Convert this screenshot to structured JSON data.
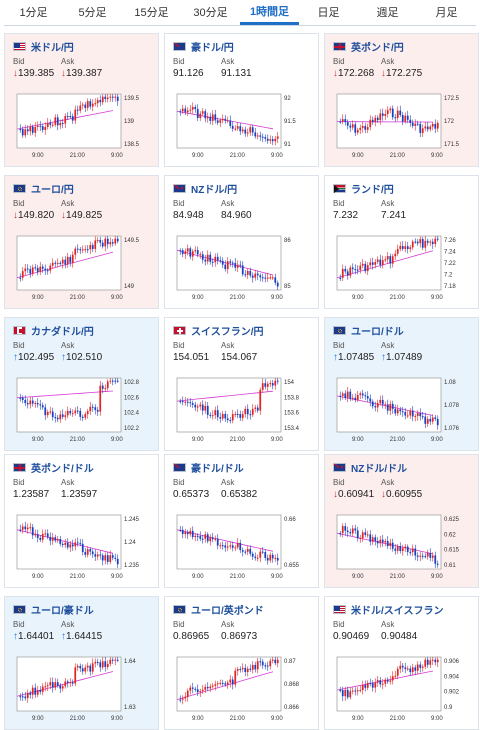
{
  "tabs": [
    {
      "label": "1分足",
      "active": false
    },
    {
      "label": "5分足",
      "active": false
    },
    {
      "label": "15分足",
      "active": false
    },
    {
      "label": "30分足",
      "active": false
    },
    {
      "label": "1時間足",
      "active": true
    },
    {
      "label": "日足",
      "active": false
    },
    {
      "label": "週足",
      "active": false
    },
    {
      "label": "月足",
      "active": false
    }
  ],
  "colors": {
    "up_candle": "#1a3fbf",
    "down_candle": "#e02424",
    "avg_line": "#d63bd6",
    "price_line": "#2f6fd6"
  },
  "cards": [
    {
      "name": "米ドル/円",
      "flag": "us",
      "trend": "down",
      "bid_label": "Bid",
      "ask_label": "Ask",
      "bid": "139.385",
      "ask": "139.387",
      "dir": "down",
      "yticks": [
        "139.5",
        "139",
        "138.5"
      ],
      "xticks": [
        "9:00",
        "21:00",
        "9:00"
      ],
      "chart_seed": 3,
      "chart_shape": "rise"
    },
    {
      "name": "豪ドル/円",
      "flag": "au",
      "trend": "flat",
      "bid_label": "Bid",
      "ask_label": "Ask",
      "bid": "91.126",
      "ask": "91.131",
      "dir": "none",
      "yticks": [
        "92",
        "91.5",
        "91"
      ],
      "xticks": [
        "9:00",
        "21:00",
        "9:00"
      ],
      "chart_seed": 5,
      "chart_shape": "fall"
    },
    {
      "name": "英ポンド/円",
      "flag": "uk",
      "trend": "down",
      "bid_label": "Bid",
      "ask_label": "Ask",
      "bid": "172.268",
      "ask": "172.275",
      "dir": "down",
      "yticks": [
        "172.5",
        "172",
        "171.5"
      ],
      "xticks": [
        "9:00",
        "21:00",
        "9:00"
      ],
      "chart_seed": 7,
      "chart_shape": "wave"
    },
    {
      "name": "ユーロ/円",
      "flag": "eu",
      "trend": "down",
      "bid_label": "Bid",
      "ask_label": "Ask",
      "bid": "149.820",
      "ask": "149.825",
      "dir": "down",
      "yticks": [
        "149.5",
        "149"
      ],
      "xticks": [
        "9:00",
        "21:00",
        "9:00"
      ],
      "chart_seed": 11,
      "chart_shape": "rise"
    },
    {
      "name": "NZドル/円",
      "flag": "nz",
      "trend": "flat",
      "bid_label": "Bid",
      "ask_label": "Ask",
      "bid": "84.948",
      "ask": "84.960",
      "dir": "none",
      "yticks": [
        "86",
        "85"
      ],
      "xticks": [
        "9:00",
        "21:00",
        "9:00"
      ],
      "chart_seed": 13,
      "chart_shape": "fall"
    },
    {
      "name": "ランド/円",
      "flag": "za",
      "trend": "flat",
      "bid_label": "Bid",
      "ask_label": "Ask",
      "bid": "7.232",
      "ask": "7.241",
      "dir": "none",
      "yticks": [
        "7.26",
        "7.24",
        "7.22",
        "7.2",
        "7.18"
      ],
      "xticks": [
        "9:00",
        "21:00",
        "9:00"
      ],
      "chart_seed": 17,
      "chart_shape": "rise"
    },
    {
      "name": "カナダドル/円",
      "flag": "ca",
      "trend": "up",
      "bid_label": "Bid",
      "ask_label": "Ask",
      "bid": "102.495",
      "ask": "102.510",
      "dir": "up",
      "yticks": [
        "102.8",
        "102.6",
        "102.4",
        "102.2"
      ],
      "xticks": [
        "9:00",
        "21:00",
        "9:00"
      ],
      "chart_seed": 19,
      "chart_shape": "dip"
    },
    {
      "name": "スイスフラン/円",
      "flag": "ch",
      "trend": "flat",
      "bid_label": "Bid",
      "ask_label": "Ask",
      "bid": "154.051",
      "ask": "154.067",
      "dir": "none",
      "yticks": [
        "154",
        "153.8",
        "153.6",
        "153.4"
      ],
      "xticks": [
        "9:00",
        "21:00",
        "9:00"
      ],
      "chart_seed": 23,
      "chart_shape": "dip"
    },
    {
      "name": "ユーロ/ドル",
      "flag": "eu",
      "trend": "up",
      "bid_label": "Bid",
      "ask_label": "Ask",
      "bid": "1.07485",
      "ask": "1.07489",
      "dir": "up",
      "yticks": [
        "1.08",
        "1.078",
        "1.076"
      ],
      "xticks": [
        "9:00",
        "21:00",
        "9:00"
      ],
      "chart_seed": 29,
      "chart_shape": "fall"
    },
    {
      "name": "英ポンド/ドル",
      "flag": "uk",
      "trend": "flat",
      "bid_label": "Bid",
      "ask_label": "Ask",
      "bid": "1.23587",
      "ask": "1.23597",
      "dir": "none",
      "yticks": [
        "1.245",
        "1.24",
        "1.235"
      ],
      "xticks": [
        "9:00",
        "21:00",
        "9:00"
      ],
      "chart_seed": 31,
      "chart_shape": "fall"
    },
    {
      "name": "豪ドル/ドル",
      "flag": "au",
      "trend": "flat",
      "bid_label": "Bid",
      "ask_label": "Ask",
      "bid": "0.65373",
      "ask": "0.65382",
      "dir": "none",
      "yticks": [
        "0.66",
        "0.655"
      ],
      "xticks": [
        "9:00",
        "21:00",
        "9:00"
      ],
      "chart_seed": 37,
      "chart_shape": "fall"
    },
    {
      "name": "NZドル/ドル",
      "flag": "nz",
      "trend": "down",
      "bid_label": "Bid",
      "ask_label": "Ask",
      "bid": "0.60941",
      "ask": "0.60955",
      "dir": "down",
      "yticks": [
        "0.625",
        "0.62",
        "0.615",
        "0.61"
      ],
      "xticks": [
        "9:00",
        "21:00",
        "9:00"
      ],
      "chart_seed": 41,
      "chart_shape": "fall"
    },
    {
      "name": "ユーロ/豪ドル",
      "flag": "eu",
      "trend": "up",
      "bid_label": "Bid",
      "ask_label": "Ask",
      "bid": "1.64401",
      "ask": "1.64415",
      "dir": "up",
      "yticks": [
        "1.64",
        "1.63"
      ],
      "xticks": [
        "9:00",
        "21:00",
        "9:00"
      ],
      "chart_seed": 43,
      "chart_shape": "rise"
    },
    {
      "name": "ユーロ/英ポンド",
      "flag": "eu",
      "trend": "flat",
      "bid_label": "Bid",
      "ask_label": "Ask",
      "bid": "0.86965",
      "ask": "0.86973",
      "dir": "none",
      "yticks": [
        "0.87",
        "0.868",
        "0.866"
      ],
      "xticks": [
        "9:00",
        "21:00",
        "9:00"
      ],
      "chart_seed": 47,
      "chart_shape": "rise"
    },
    {
      "name": "米ドル/スイスフラン",
      "flag": "us",
      "trend": "flat",
      "bid_label": "Bid",
      "ask_label": "Ask",
      "bid": "0.90469",
      "ask": "0.90484",
      "dir": "none",
      "yticks": [
        "0.906",
        "0.904",
        "0.902",
        "0.9"
      ],
      "xticks": [
        "9:00",
        "21:00",
        "9:00"
      ],
      "chart_seed": 53,
      "chart_shape": "rise"
    }
  ]
}
